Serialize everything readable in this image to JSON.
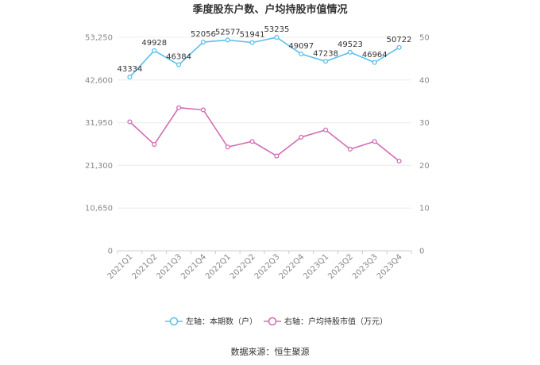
{
  "chart_data": {
    "type": "line",
    "title": "季度股东户数、户均持股市值情况",
    "categories": [
      "2021Q1",
      "2021Q2",
      "2021Q3",
      "2021Q4",
      "2022Q1",
      "2022Q2",
      "2022Q3",
      "2022Q4",
      "2023Q1",
      "2023Q2",
      "2023Q3",
      "2023Q4"
    ],
    "left_axis": {
      "ticks": [
        "0",
        "10,650",
        "21,300",
        "31,950",
        "42,600",
        "53,250"
      ],
      "ylim": [
        0,
        53250
      ]
    },
    "right_axis": {
      "ticks": [
        "0",
        "10",
        "20",
        "30",
        "40",
        "50"
      ],
      "ylim": [
        0,
        50
      ]
    },
    "series": [
      {
        "name": "左轴：本期数（户）",
        "axis": "left",
        "color": "#5bc0eb",
        "values": [
          43334,
          49928,
          46384,
          52056,
          52577,
          51941,
          53235,
          49097,
          47238,
          49523,
          46964,
          50722
        ],
        "labels": [
          "43334",
          "49928",
          "46384",
          "52056",
          "52577",
          "51941",
          "53235",
          "49097",
          "47238",
          "49523",
          "46964",
          "50722"
        ]
      },
      {
        "name": "右轴：户均持股市值（万元）",
        "axis": "right",
        "color": "#d36bb5",
        "values": [
          30.2,
          24.9,
          33.5,
          33.0,
          24.3,
          25.6,
          22.2,
          26.6,
          28.3,
          23.8,
          25.6,
          21.0
        ]
      }
    ],
    "grid": true,
    "legend": "bottom"
  },
  "footer": {
    "source": "数据来源：恒生聚源"
  }
}
